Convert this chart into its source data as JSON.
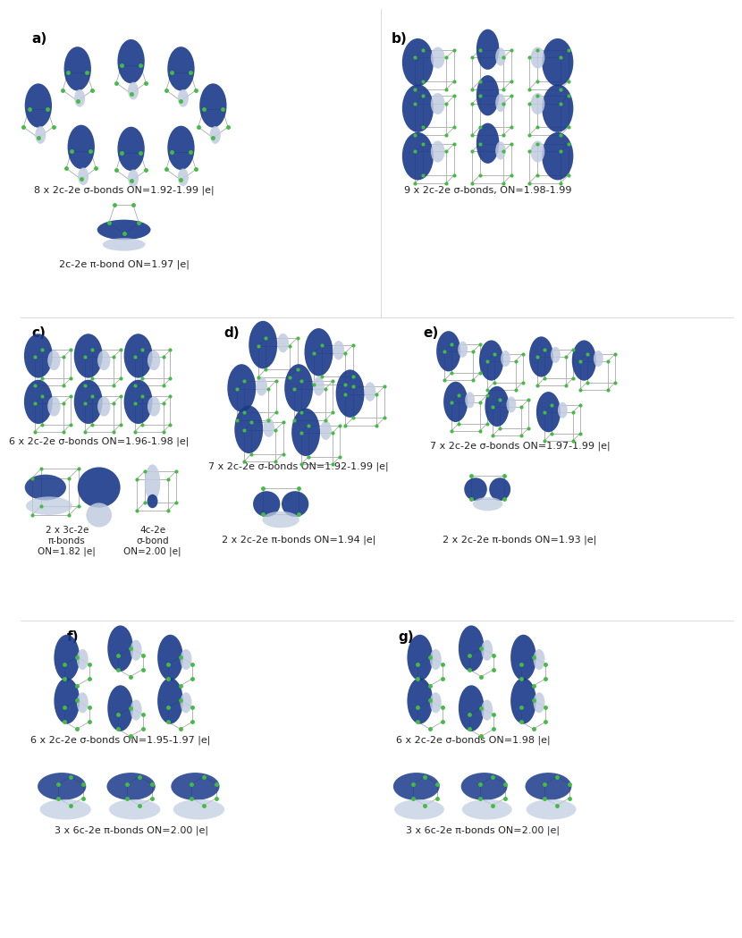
{
  "background_color": "#ffffff",
  "panels": [
    {
      "label": "a)",
      "caption1": "8 x 2c-2e σ-bonds ON=1.92-1.99 |e|",
      "caption2": "2c-2e π-bond ON=1.97 |e|"
    },
    {
      "label": "b)",
      "caption1": "9 x 2c-2e σ-bonds, ON=1.98-1.99"
    },
    {
      "label": "c)",
      "caption1": "6 x 2c-2e σ-bonds ON=1.96-1.98 |e|",
      "caption2": "2 x 3c-2e\nπ-bonds\nON=1.82 |e|",
      "caption3": "4c-2e\nσ-bond\nON=2.00 |e|"
    },
    {
      "label": "d)",
      "caption1": "7 x 2c-2e σ-bonds ON=1.92-1.99 |e|",
      "caption2": "2 x 2c-2e π-bonds ON=1.94 |e|"
    },
    {
      "label": "e)",
      "caption1": "7 x 2c-2e σ-bonds ON=1.97-1.99 |e|",
      "caption2": "2 x 2c-2e π-bonds ON=1.93 |e|"
    },
    {
      "label": "f)",
      "caption1": "6 x 2c-2e σ-bonds ON=1.95-1.97 |e|",
      "caption2": "3 x 6c-2e π-bonds ON=2.00 |e|"
    },
    {
      "label": "g)",
      "caption1": "6 x 2c-2e σ-bonds ON=1.98 |e|",
      "caption2": "3 x 6c-2e π-bonds ON=2.00 |e|"
    }
  ],
  "blue_dark": "#1a3a8a",
  "blue_light": "#c0cce0",
  "green_dot": "#44bb44",
  "grey_line": "#aaaaaa",
  "font_size_label": 11,
  "font_size_caption": 8.0,
  "font_size_caption_small": 7.5
}
